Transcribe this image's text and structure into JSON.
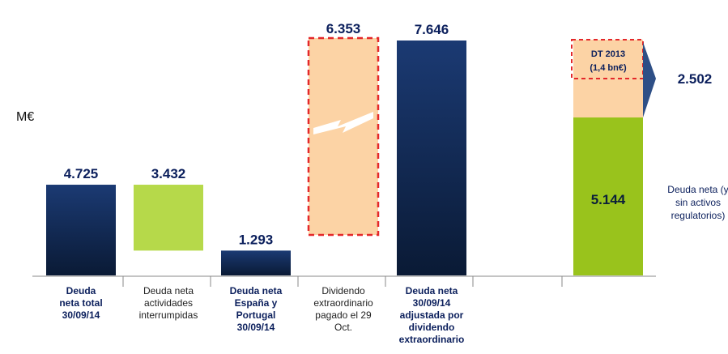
{
  "chart_data": {
    "type": "waterfall-bar",
    "unit_label": "M€",
    "bars": [
      {
        "value_label": "4.725",
        "value": 4725,
        "label_lines": [
          "Deuda",
          "neta total",
          "30/09/14"
        ],
        "bold": true,
        "color": "navy"
      },
      {
        "value_label": "3.432",
        "value": 3432,
        "label_lines": [
          "Deuda neta",
          "actividades",
          "interrumpidas"
        ],
        "bold": false,
        "color": "lightgreen"
      },
      {
        "value_label": "1.293",
        "value": 1293,
        "label_lines": [
          "Deuda neta",
          "España y",
          "Portugal",
          "30/09/14"
        ],
        "bold": true,
        "color": "navy"
      },
      {
        "value_label": "6.353",
        "value": 6353,
        "label_lines": [
          "Dividendo",
          "extraordinario",
          "pagado el 29",
          "Oct."
        ],
        "bold": false,
        "color": "peach-dashed"
      },
      {
        "value_label": "7.646",
        "value": 7646,
        "label_lines": [
          "Deuda neta",
          "30/09/14",
          "adjustada por",
          "dividendo",
          "extraordinario"
        ],
        "bold": true,
        "color": "navy"
      }
    ],
    "stacked_bar": {
      "bottom": {
        "value_label": "5.144",
        "value": 5144,
        "color": "green"
      },
      "top": {
        "value_label": "2.502",
        "value": 2502,
        "color": "peach"
      },
      "callout_lines": [
        "DT 2013",
        "(1,4 bn€)"
      ]
    },
    "side_note_lines": [
      "Deuda neta (y",
      "sin activos",
      "regulatorios)"
    ]
  },
  "colors": {
    "navy_top": "#1b3a73",
    "navy_bottom": "#0a1a35",
    "lightgreen": "#b6d94a",
    "green": "#99c31c",
    "peach": "#fcd3a5",
    "dash_red": "#e4282a",
    "value_text": "#0b1f5c"
  }
}
